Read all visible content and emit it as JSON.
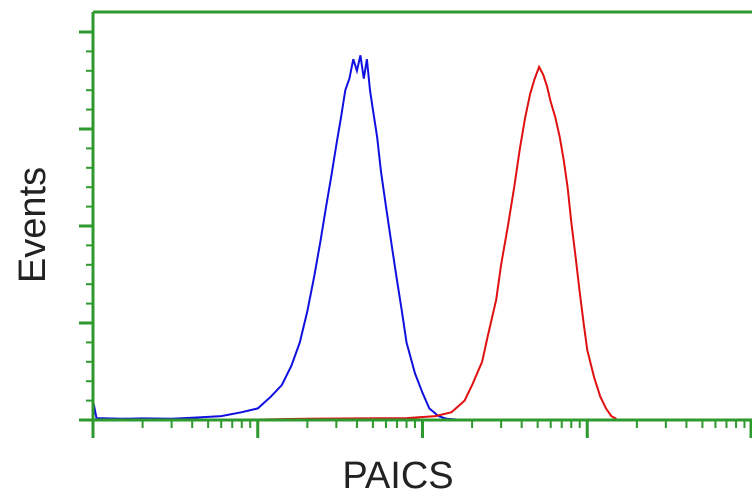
{
  "chart_data": {
    "type": "line",
    "title": "",
    "xlabel": "PAICS",
    "ylabel": "Events",
    "x_scale": "log",
    "xlim": [
      1,
      10000
    ],
    "ylim": [
      0,
      100
    ],
    "grid": false,
    "legend": "none",
    "axis_color": "#2e9a2e",
    "series": [
      {
        "color": "#1010e0",
        "points": [
          [
            1.0,
            5
          ],
          [
            1.05,
            0.5
          ],
          [
            1.5,
            0.3
          ],
          [
            2,
            0.4
          ],
          [
            3,
            0.3
          ],
          [
            4,
            0.6
          ],
          [
            5,
            0.8
          ],
          [
            6,
            1
          ],
          [
            8,
            2
          ],
          [
            10,
            3
          ],
          [
            12,
            6
          ],
          [
            14,
            9
          ],
          [
            16,
            14
          ],
          [
            18,
            20
          ],
          [
            20,
            28
          ],
          [
            22,
            37
          ],
          [
            24,
            46
          ],
          [
            26,
            55
          ],
          [
            28,
            63
          ],
          [
            30,
            71
          ],
          [
            32,
            78
          ],
          [
            34,
            85
          ],
          [
            36,
            88
          ],
          [
            38,
            93
          ],
          [
            40,
            90
          ],
          [
            42,
            94
          ],
          [
            44,
            88
          ],
          [
            46,
            93
          ],
          [
            48,
            85
          ],
          [
            50,
            80
          ],
          [
            53,
            73
          ],
          [
            56,
            64
          ],
          [
            60,
            55
          ],
          [
            65,
            45
          ],
          [
            70,
            36
          ],
          [
            75,
            28
          ],
          [
            80,
            20
          ],
          [
            90,
            12
          ],
          [
            100,
            7
          ],
          [
            110,
            3
          ],
          [
            125,
            1
          ],
          [
            140,
            0.3
          ],
          [
            180,
            0
          ]
        ]
      },
      {
        "color": "#e01010",
        "points": [
          [
            5,
            0
          ],
          [
            20,
            0.3
          ],
          [
            40,
            0.4
          ],
          [
            80,
            0.5
          ],
          [
            120,
            1
          ],
          [
            150,
            2
          ],
          [
            180,
            5
          ],
          [
            200,
            9
          ],
          [
            230,
            15
          ],
          [
            250,
            22
          ],
          [
            280,
            31
          ],
          [
            300,
            40
          ],
          [
            330,
            50
          ],
          [
            360,
            60
          ],
          [
            390,
            70
          ],
          [
            420,
            78
          ],
          [
            450,
            84
          ],
          [
            480,
            88
          ],
          [
            510,
            91
          ],
          [
            540,
            89
          ],
          [
            570,
            86
          ],
          [
            600,
            82
          ],
          [
            640,
            78
          ],
          [
            680,
            73
          ],
          [
            720,
            67
          ],
          [
            760,
            60
          ],
          [
            800,
            51
          ],
          [
            850,
            42
          ],
          [
            900,
            33
          ],
          [
            950,
            25
          ],
          [
            1000,
            18
          ],
          [
            1100,
            11
          ],
          [
            1200,
            6
          ],
          [
            1300,
            3
          ],
          [
            1400,
            1
          ],
          [
            1500,
            0.3
          ]
        ]
      }
    ]
  }
}
